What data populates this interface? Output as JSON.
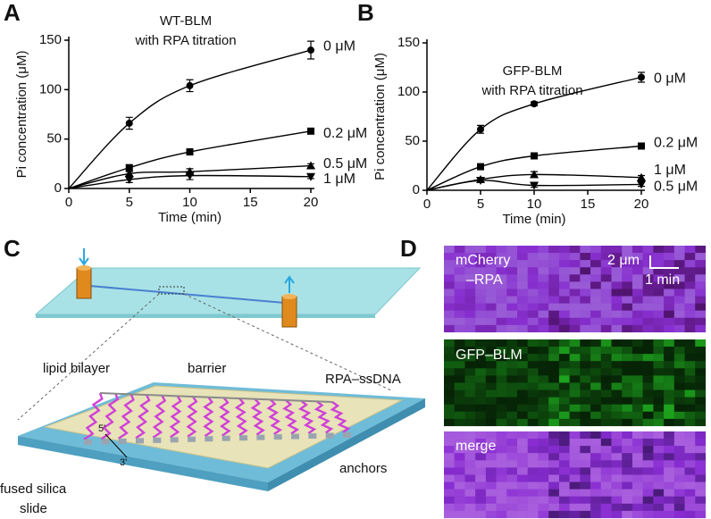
{
  "panels": {
    "A": "A",
    "B": "B",
    "C": "C",
    "D": "D"
  },
  "chart_data": [
    {
      "type": "line",
      "title": "WT-BLM",
      "subtitle": "with RPA titration",
      "xlabel": "Time (min)",
      "ylabel": "Pi concentration (μM)",
      "x": [
        0,
        5,
        10,
        20
      ],
      "series": [
        {
          "name": "0 μM",
          "color": "#000000",
          "marker": "circle",
          "values": [
            0,
            66,
            104,
            140
          ],
          "errors": [
            0,
            6,
            6,
            9
          ]
        },
        {
          "name": "0.2 μM",
          "color": "#000000",
          "marker": "square",
          "values": [
            0,
            21,
            37,
            58
          ],
          "errors": [
            0,
            3,
            3,
            2
          ]
        },
        {
          "name": "0.5 μM",
          "color": "#000000",
          "marker": "triangle-up",
          "values": [
            0,
            15,
            17,
            23
          ],
          "errors": [
            0,
            2,
            3,
            2
          ]
        },
        {
          "name": "1 μM",
          "color": "#000000",
          "marker": "triangle-down",
          "values": [
            0,
            9,
            13,
            12
          ],
          "errors": [
            0,
            3,
            4,
            2
          ]
        }
      ],
      "xlim": [
        0,
        20
      ],
      "xticks": [
        0,
        5,
        10,
        15,
        20
      ],
      "ylim": [
        0,
        150
      ],
      "yticks": [
        0,
        50,
        100,
        150
      ]
    },
    {
      "type": "line",
      "title": "GFP-BLM",
      "subtitle": "with RPA titration",
      "xlabel": "Time (min)",
      "ylabel": "Pi concentration (μM)",
      "x": [
        0,
        5,
        10,
        20
      ],
      "series": [
        {
          "name": "0 μM",
          "color": "#000000",
          "marker": "circle",
          "values": [
            0,
            62,
            88,
            115
          ],
          "errors": [
            0,
            4,
            2,
            5
          ]
        },
        {
          "name": "0.2 μM",
          "color": "#000000",
          "marker": "square",
          "values": [
            0,
            24,
            35,
            45
          ],
          "errors": [
            0,
            2,
            2,
            2
          ]
        },
        {
          "name": "1 μM",
          "color": "#000000",
          "marker": "triangle-up",
          "values": [
            0,
            11,
            16,
            13
          ],
          "errors": [
            0,
            2,
            3,
            2
          ]
        },
        {
          "name": "0.5 μM",
          "color": "#000000",
          "marker": "triangle-down",
          "values": [
            0,
            10,
            5,
            6
          ],
          "errors": [
            0,
            2,
            2,
            2
          ]
        }
      ],
      "xlim": [
        0,
        20
      ],
      "xticks": [
        0,
        5,
        10,
        15,
        20
      ],
      "ylim": [
        0,
        150
      ],
      "yticks": [
        0,
        50,
        100,
        150
      ]
    }
  ],
  "diagram": {
    "lipid_bilayer": "lipid bilayer",
    "barrier": "barrier",
    "rpa_ssdna": "RPA–ssDNA",
    "anchors": "anchors",
    "slide_line1": "fused silica",
    "slide_line2": "slide",
    "five_prime": "5'",
    "three_prime": "3'"
  },
  "kymographs": {
    "panel1_line1": "mCherry",
    "panel1_line2": "–RPA",
    "scale_length": "2 μm",
    "scale_time": "1 min",
    "panel2": "GFP–BLM",
    "panel3": "merge"
  }
}
